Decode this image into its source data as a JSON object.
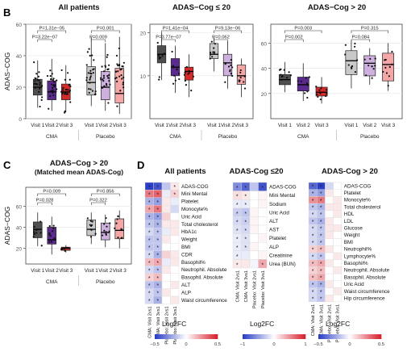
{
  "colors": {
    "cma_v1": "#4f4f4f",
    "cma_v2": "#5b2a8f",
    "cma_v3": "#d52a2a",
    "pl_v1": "#c8c8c8",
    "pl_v2": "#cdb0dd",
    "pl_v3": "#f3a7a7",
    "heat_neg": "#2b3fc6",
    "heat_pos": "#d8202f"
  },
  "panels": {
    "B": "B",
    "C": "C",
    "D": "D"
  },
  "chart_data": [
    {
      "type": "box",
      "title": "All patients",
      "ylabel": "ADAS−COG",
      "ylim": [
        0,
        60
      ],
      "yticks": [
        "0",
        "20",
        "40",
        "60"
      ],
      "xticks": [
        "Visit 1",
        "Visit 2",
        "Visit 3",
        "Visit 1",
        "Visit 2",
        "Visit 3"
      ],
      "groups": [
        "CMA",
        "Placebo"
      ],
      "boxes": [
        {
          "q1": 15,
          "med": 20,
          "q3": 25,
          "lo": 7,
          "hi": 37
        },
        {
          "q1": 12,
          "med": 17,
          "q3": 24,
          "lo": 5,
          "hi": 38
        },
        {
          "q1": 12,
          "med": 17,
          "q3": 22,
          "lo": 4,
          "hi": 34
        },
        {
          "q1": 15,
          "med": 23,
          "q3": 33,
          "lo": 8,
          "hi": 52
        },
        {
          "q1": 12,
          "med": 20,
          "q3": 30,
          "lo": 5,
          "hi": 48
        },
        {
          "q1": 10,
          "med": 16,
          "q3": 32,
          "lo": 3,
          "hi": 52
        }
      ],
      "brackets": [
        {
          "from": 0,
          "to": 2,
          "label": "P=1.31e−05"
        },
        {
          "from": 0,
          "to": 1,
          "label": "P=3.22e−07"
        },
        {
          "from": 3,
          "to": 5,
          "label": "P=0.001"
        },
        {
          "from": 3,
          "to": 4,
          "label": "P=0.009"
        }
      ]
    },
    {
      "type": "box",
      "title": "ADAS−Cog ≤ 20",
      "ylabel": "",
      "ylim": [
        0,
        22
      ],
      "yticks": [
        "10",
        "20"
      ],
      "xticks": [
        "Visit 1",
        "Visit 2",
        "Visit 3",
        "Visit 1",
        "Visit 2",
        "Visit 3"
      ],
      "groups": [
        "CMA",
        "Placebo"
      ],
      "boxes": [
        {
          "q1": 13,
          "med": 15,
          "q3": 17,
          "lo": 9,
          "hi": 20
        },
        {
          "q1": 10,
          "med": 12,
          "q3": 14,
          "lo": 6,
          "hi": 17
        },
        {
          "q1": 9,
          "med": 11,
          "q3": 12,
          "lo": 5,
          "hi": 15
        },
        {
          "q1": 14,
          "med": 15,
          "q3": 17.5,
          "lo": 11,
          "hi": 19
        },
        {
          "q1": 10,
          "med": 13,
          "q3": 15,
          "lo": 7,
          "hi": 18
        },
        {
          "q1": 8,
          "med": 10,
          "q3": 12.5,
          "lo": 5,
          "hi": 14
        }
      ],
      "brackets": [
        {
          "from": 0,
          "to": 2,
          "label": "P=1.41e−04"
        },
        {
          "from": 0,
          "to": 1,
          "label": "P=3.77e−07"
        },
        {
          "from": 3,
          "to": 5,
          "label": "P=9.13e−06"
        },
        {
          "from": 3,
          "to": 4,
          "label": "P=0.062"
        }
      ]
    },
    {
      "type": "box",
      "title": "ADAS−Cog > 20",
      "ylabel": "",
      "ylim": [
        0,
        75
      ],
      "yticks": [
        "20",
        "40",
        "60"
      ],
      "xticks": [
        "Visit 1",
        "Visit 2",
        "Visit 3",
        "Visit 1",
        "Visit 2",
        "Visit 3"
      ],
      "groups": [
        "CMA",
        "Placebo"
      ],
      "boxes": [
        {
          "q1": 27,
          "med": 31,
          "q3": 35,
          "lo": 21,
          "hi": 45
        },
        {
          "q1": 22,
          "med": 27,
          "q3": 33,
          "lo": 14,
          "hi": 44
        },
        {
          "q1": 18,
          "med": 21,
          "q3": 25,
          "lo": 12,
          "hi": 33
        },
        {
          "q1": 35,
          "med": 46,
          "q3": 54,
          "lo": 24,
          "hi": 62
        },
        {
          "q1": 34,
          "med": 44,
          "q3": 50,
          "lo": 27,
          "hi": 56
        },
        {
          "q1": 30,
          "med": 43,
          "q3": 52,
          "lo": 22,
          "hi": 60
        }
      ],
      "brackets": [
        {
          "from": 0,
          "to": 2,
          "label": "P=0.003"
        },
        {
          "from": 0,
          "to": 1,
          "label": "P=0.002"
        },
        {
          "from": 3,
          "to": 5,
          "label": "P=0.315"
        },
        {
          "from": 3,
          "to": 4,
          "label": "P=0.084"
        }
      ]
    },
    {
      "type": "box",
      "title": "ADAS−Cog > 20",
      "subtitle": "(Matched mean ADAS-Cog)",
      "ylabel": "ADAS−COG",
      "ylim": [
        5,
        78
      ],
      "yticks": [
        "20",
        "40",
        "60"
      ],
      "xticks": [
        "Visit 1",
        "Visit 2",
        "Visit 3",
        "Visit 1",
        "Visit 2",
        "Visit 3"
      ],
      "groups": [
        "CMA",
        "Placebo"
      ],
      "boxes": [
        {
          "q1": 30,
          "med": 38,
          "q3": 45,
          "lo": 22,
          "hi": 54
        },
        {
          "q1": 24,
          "med": 28,
          "q3": 40,
          "lo": 14,
          "hi": 50
        },
        {
          "q1": 18,
          "med": 20,
          "q3": 21,
          "lo": 16,
          "hi": 23
        },
        {
          "q1": 32,
          "med": 38,
          "q3": 47,
          "lo": 24,
          "hi": 54
        },
        {
          "q1": 28,
          "med": 35,
          "q3": 44,
          "lo": 21,
          "hi": 52
        },
        {
          "q1": 29,
          "med": 37,
          "q3": 48,
          "lo": 20,
          "hi": 56
        }
      ],
      "brackets": [
        {
          "from": 0,
          "to": 2,
          "label": "P=0.009"
        },
        {
          "from": 0,
          "to": 1,
          "label": "P=0.028"
        },
        {
          "from": 3,
          "to": 5,
          "label": "P=0.856"
        },
        {
          "from": 3,
          "to": 4,
          "label": "P=0.322"
        }
      ]
    },
    {
      "type": "heatmap",
      "title": "All patients",
      "columns": [
        "CMA: Visit 2vs1",
        "CMA: Visit 3vs1",
        "Placebo: Visit 2vs1",
        "Placebo: Visit 3vs1"
      ],
      "rows": [
        "ADAS-COG",
        "Mini Mental",
        "Platelet",
        "Monocyte%",
        "Uric Acid",
        "Total cholesterol",
        "HbA1c",
        "Weight",
        "BMI",
        "CDR",
        "Basophil%",
        "Neutrophil. Absolute",
        "Basophil. Absolute",
        "ALT",
        "ALP",
        "Waist circumference"
      ],
      "values": [
        [
          -0.5,
          -0.45,
          -0.15,
          0.05
        ],
        [
          0.3,
          0.35,
          -0.05,
          0.1
        ],
        [
          -0.2,
          -0.25,
          0.05,
          -0.05
        ],
        [
          0.2,
          0.3,
          0.05,
          -0.1
        ],
        [
          -0.2,
          -0.25,
          0.1,
          0.0
        ],
        [
          -0.15,
          -0.2,
          0.05,
          0.05
        ],
        [
          -0.1,
          -0.15,
          -0.05,
          0.05
        ],
        [
          -0.15,
          -0.15,
          0.05,
          0.0
        ],
        [
          -0.15,
          -0.15,
          0.0,
          0.0
        ],
        [
          -0.1,
          -0.2,
          0.1,
          0.05
        ],
        [
          0.15,
          0.2,
          -0.05,
          0.05
        ],
        [
          -0.1,
          -0.15,
          0.05,
          0.0
        ],
        [
          0.1,
          0.15,
          0.0,
          0.0
        ],
        [
          -0.15,
          -0.2,
          0.0,
          0.05
        ],
        [
          -0.1,
          -0.15,
          0.05,
          0.0
        ],
        [
          -0.1,
          -0.2,
          0.0,
          0.05
        ]
      ],
      "stars": [
        [
          1,
          1,
          0,
          1
        ],
        [
          1,
          1,
          0,
          1
        ],
        [
          1,
          1,
          0,
          0
        ],
        [
          1,
          1,
          0,
          0
        ],
        [
          1,
          1,
          0,
          0
        ],
        [
          1,
          1,
          0,
          0
        ],
        [
          1,
          1,
          0,
          0
        ],
        [
          1,
          1,
          0,
          0
        ],
        [
          1,
          1,
          0,
          0
        ],
        [
          1,
          1,
          0,
          0
        ],
        [
          1,
          1,
          0,
          0
        ],
        [
          1,
          1,
          0,
          0
        ],
        [
          1,
          1,
          0,
          0
        ],
        [
          1,
          1,
          0,
          0
        ],
        [
          1,
          1,
          0,
          0
        ],
        [
          1,
          1,
          0,
          0
        ]
      ],
      "legend_title": "Log2FC",
      "legend_ticks": [
        "−0.5",
        "0",
        "0.5"
      ],
      "legend_range": [
        -0.5,
        0.5
      ]
    },
    {
      "type": "heatmap",
      "title": "ADAS-Cog ≤20",
      "columns": [
        "CMA: Visit 2vs1",
        "CMA: Visit 3vs1",
        "Placebo: Visit 2vs1",
        "Placebo: Visit 3vs1"
      ],
      "rows": [
        "ADAS-COG",
        "Mini Mental",
        "Sodium",
        "Uric Acid",
        "ALT",
        "AST",
        "Platelet",
        "ALP",
        "Creatinine",
        "Urea (BUN)"
      ],
      "values": [
        [
          -0.6,
          -0.8,
          -0.3,
          -0.9
        ],
        [
          0.15,
          0.1,
          0.0,
          0.05
        ],
        [
          -0.1,
          -0.1,
          0.0,
          0.05
        ],
        [
          -0.25,
          -0.3,
          0.05,
          0.0
        ],
        [
          -0.2,
          -0.25,
          0.05,
          0.0
        ],
        [
          -0.15,
          -0.2,
          0.05,
          0.0
        ],
        [
          -0.1,
          -0.15,
          0.0,
          0.05
        ],
        [
          -0.1,
          -0.15,
          0.05,
          0.0
        ],
        [
          -0.1,
          -0.1,
          0.0,
          0.05
        ],
        [
          0.1,
          0.1,
          -0.05,
          0.4
        ]
      ],
      "stars": [
        [
          1,
          1,
          0,
          1
        ],
        [
          1,
          1,
          0,
          0
        ],
        [
          1,
          1,
          0,
          0
        ],
        [
          1,
          1,
          0,
          0
        ],
        [
          1,
          1,
          0,
          0
        ],
        [
          1,
          1,
          0,
          0
        ],
        [
          1,
          1,
          0,
          0
        ],
        [
          1,
          1,
          0,
          0
        ],
        [
          1,
          0,
          0,
          0
        ],
        [
          1,
          0,
          0,
          1
        ]
      ],
      "legend_title": "Log2FC",
      "legend_ticks": [
        "−1",
        "0",
        "1"
      ],
      "legend_range": [
        -1,
        1
      ]
    },
    {
      "type": "heatmap",
      "title": "ADAS-Cog > 20",
      "columns": [
        "CMA: Visit 2vs1",
        "CMA: Visit 3vs1",
        "Placebo: Visit 2vs1",
        "Placebo: Visit 3vs1"
      ],
      "rows": [
        "ADAS-COG",
        "Platelet",
        "Monocyte%",
        "Total cholesterol",
        "HDL",
        "LDL",
        "Glucose",
        "Weight",
        "BMI",
        "Neutrophil%",
        "Lymphocyte%",
        "Basophil%",
        "Neutrophil. Absolute",
        "Basophil. Absolute",
        "Uric Acid",
        "Waist circumference",
        "Hip circumference"
      ],
      "values": [
        [
          -0.4,
          -0.5,
          -0.1,
          0.0
        ],
        [
          -0.2,
          -0.25,
          0.05,
          0.0
        ],
        [
          0.25,
          0.3,
          0.0,
          0.05
        ],
        [
          -0.15,
          -0.2,
          0.05,
          0.05
        ],
        [
          -0.1,
          -0.15,
          0.0,
          0.05
        ],
        [
          -0.15,
          -0.2,
          0.05,
          0.0
        ],
        [
          -0.1,
          -0.15,
          0.05,
          0.05
        ],
        [
          -0.1,
          -0.15,
          0.05,
          0.0
        ],
        [
          -0.1,
          -0.15,
          0.0,
          0.0
        ],
        [
          0.1,
          0.15,
          0.05,
          0.0
        ],
        [
          -0.1,
          -0.15,
          0.0,
          0.05
        ],
        [
          0.15,
          0.2,
          0.05,
          0.0
        ],
        [
          0.1,
          0.15,
          0.0,
          0.05
        ],
        [
          0.15,
          0.2,
          0.0,
          0.0
        ],
        [
          -0.15,
          -0.2,
          0.05,
          0.0
        ],
        [
          -0.1,
          -0.15,
          0.0,
          0.05
        ],
        [
          -0.1,
          -0.15,
          0.05,
          0.0
        ]
      ],
      "stars": [
        [
          1,
          1,
          0,
          0
        ],
        [
          1,
          1,
          0,
          0
        ],
        [
          1,
          1,
          0,
          0
        ],
        [
          1,
          1,
          0,
          0
        ],
        [
          1,
          1,
          0,
          0
        ],
        [
          1,
          1,
          0,
          0
        ],
        [
          1,
          1,
          0,
          0
        ],
        [
          1,
          1,
          0,
          0
        ],
        [
          1,
          1,
          0,
          0
        ],
        [
          1,
          1,
          0,
          0
        ],
        [
          1,
          1,
          0,
          0
        ],
        [
          1,
          1,
          0,
          0
        ],
        [
          1,
          1,
          0,
          0
        ],
        [
          1,
          1,
          0,
          0
        ],
        [
          1,
          1,
          0,
          0
        ],
        [
          1,
          1,
          0,
          0
        ],
        [
          1,
          1,
          0,
          0
        ]
      ],
      "legend_title": "Log2FC",
      "legend_ticks": [
        "−0.5",
        "0",
        "0.5"
      ],
      "legend_range": [
        -0.5,
        0.5
      ]
    }
  ]
}
